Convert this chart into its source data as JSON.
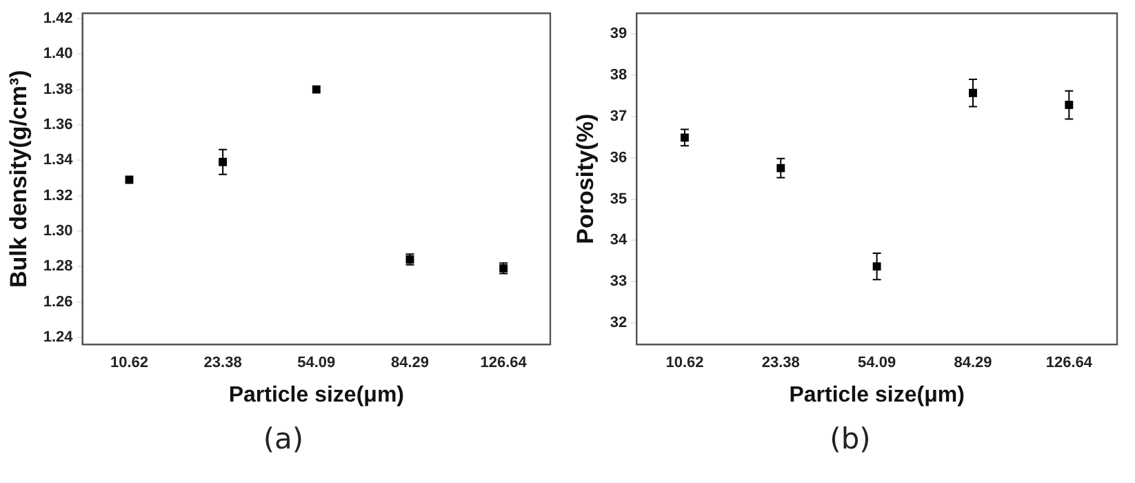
{
  "chart_data": [
    {
      "type": "scatter",
      "categories": [
        "10.62",
        "23.38",
        "54.09",
        "84.29",
        "126.64"
      ],
      "values": [
        1.329,
        1.339,
        1.38,
        1.284,
        1.279
      ],
      "errors": [
        null,
        0.007,
        null,
        0.003,
        0.003
      ],
      "color": "#000000",
      "marker": "square",
      "xlabel": "Particle size(μm)",
      "ylabel": "Bulk density(g/cm³)",
      "ylim": [
        1.236,
        1.423
      ],
      "yticks": [
        {
          "value": 1.24,
          "label": "1.24"
        },
        {
          "value": 1.26,
          "label": "1.26"
        },
        {
          "value": 1.28,
          "label": "1.28"
        },
        {
          "value": 1.3,
          "label": "1.30"
        },
        {
          "value": 1.32,
          "label": "1.32"
        },
        {
          "value": 1.34,
          "label": "1.34"
        },
        {
          "value": 1.36,
          "label": "1.36"
        },
        {
          "value": 1.38,
          "label": "1.38"
        },
        {
          "value": 1.4,
          "label": "1.40"
        },
        {
          "value": 1.42,
          "label": "1.42"
        }
      ],
      "annotations": [
        "(a)"
      ]
    },
    {
      "type": "scatter",
      "categories": [
        "10.62",
        "23.38",
        "54.09",
        "84.29",
        "126.64"
      ],
      "values": [
        36.49,
        35.75,
        33.37,
        37.57,
        37.28
      ],
      "errors": [
        0.2,
        0.23,
        0.32,
        0.33,
        0.34
      ],
      "color": "#000000",
      "marker": "square",
      "xlabel": "Particle size(μm)",
      "ylabel": "Porosity(%)",
      "ylim": [
        31.48,
        39.5
      ],
      "yticks": [
        32,
        33,
        34,
        35,
        36,
        37,
        38,
        39
      ],
      "annotations": [
        "(b)"
      ]
    }
  ]
}
